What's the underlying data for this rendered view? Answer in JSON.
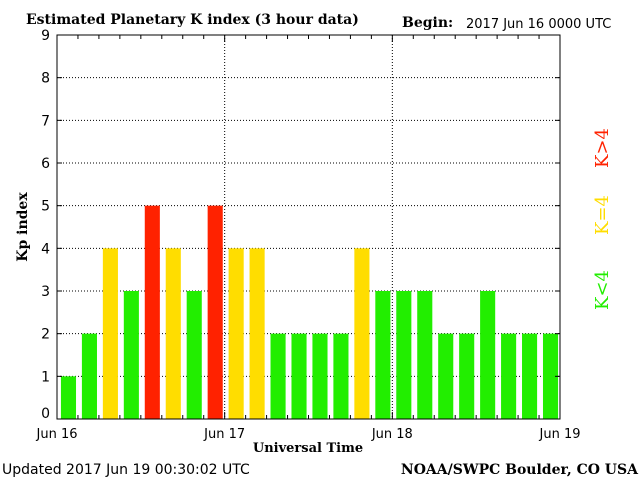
{
  "header": {
    "title": "Estimated Planetary K index (3 hour data)",
    "begin_label": "Begin:",
    "begin_value": "2017 Jun 16 0000 UTC"
  },
  "footer": {
    "updated": "Updated 2017 Jun 19 00:30:02 UTC",
    "credit": "NOAA/SWPC Boulder, CO USA"
  },
  "legend": {
    "high": "K>4",
    "mid": "K=4",
    "low": "K<4"
  },
  "colors": {
    "low": "#22ee00",
    "mid": "#ffdd00",
    "high": "#ff2200",
    "frame": "#000000"
  },
  "chart_data": {
    "type": "bar",
    "title": "Estimated Planetary K index (3 hour data)",
    "xlabel": "Universal Time",
    "ylabel": "Kp index",
    "ylim": [
      0,
      9
    ],
    "yticks": [
      0,
      1,
      2,
      3,
      4,
      5,
      6,
      7,
      8,
      9
    ],
    "xticks": [
      "Jun 16",
      "Jun 17",
      "Jun 18",
      "Jun 19"
    ],
    "grid": true,
    "categories": [
      "2017-06-16 00",
      "2017-06-16 03",
      "2017-06-16 06",
      "2017-06-16 09",
      "2017-06-16 12",
      "2017-06-16 15",
      "2017-06-16 18",
      "2017-06-16 21",
      "2017-06-17 00",
      "2017-06-17 03",
      "2017-06-17 06",
      "2017-06-17 09",
      "2017-06-17 12",
      "2017-06-17 15",
      "2017-06-17 18",
      "2017-06-17 21",
      "2017-06-18 00",
      "2017-06-18 03",
      "2017-06-18 06",
      "2017-06-18 09",
      "2017-06-18 12",
      "2017-06-18 15",
      "2017-06-18 18",
      "2017-06-18 21"
    ],
    "values": [
      1,
      2,
      4,
      3,
      5,
      4,
      3,
      5,
      4,
      4,
      2,
      2,
      2,
      2,
      4,
      3,
      3,
      3,
      2,
      2,
      3,
      2,
      2,
      2
    ]
  }
}
